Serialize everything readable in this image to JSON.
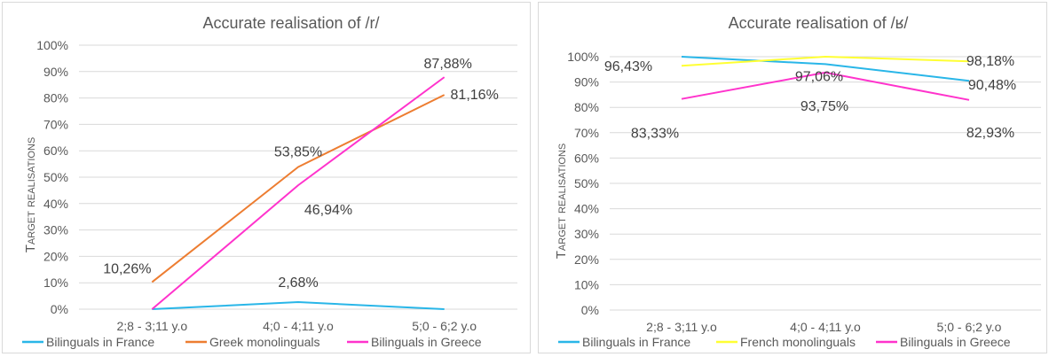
{
  "chart_data": [
    {
      "type": "line",
      "title": "Accurate realisation of /r/",
      "ylabel": "Target realisations",
      "xlabel": "",
      "ylim": [
        0,
        100
      ],
      "yticks": [
        "0%",
        "10%",
        "20%",
        "30%",
        "40%",
        "50%",
        "60%",
        "70%",
        "80%",
        "90%",
        "100%"
      ],
      "categories": [
        "2;8 - 3;11 y.o",
        "4;0 - 4;11 y.o",
        "5;0 - 6;2 y.o"
      ],
      "legend_position": "bottom",
      "series": [
        {
          "name": "Bilinguals in France",
          "color": "#29b6e8",
          "values": [
            0,
            2.68,
            0
          ],
          "labels": [
            "",
            "2,68%",
            ""
          ]
        },
        {
          "name": "Greek monolinguals",
          "color": "#ed7d31",
          "values": [
            10.26,
            53.85,
            81.16
          ],
          "labels": [
            "10,26%",
            "53,85%",
            "81,16%"
          ]
        },
        {
          "name": "Bilinguals in Greece",
          "color": "#ff33cc",
          "values": [
            0,
            46.94,
            87.88
          ],
          "labels": [
            "",
            "46,94%",
            "87,88%"
          ]
        }
      ]
    },
    {
      "type": "line",
      "title": "Accurate realisation of /ʁ/",
      "ylabel": "Target realisations",
      "xlabel": "",
      "ylim": [
        0,
        100
      ],
      "yticks": [
        "0%",
        "10%",
        "20%",
        "30%",
        "40%",
        "50%",
        "60%",
        "70%",
        "80%",
        "90%",
        "100%"
      ],
      "categories": [
        "2;8 - 3;11 y.o",
        "4;0 - 4;11 y.o",
        "5;0 - 6;2 y.o"
      ],
      "legend_position": "bottom",
      "series": [
        {
          "name": "Bilinguals in France",
          "color": "#29b6e8",
          "values": [
            100,
            97.06,
            90.48
          ],
          "labels": [
            "",
            "97,06%",
            "90,48%"
          ]
        },
        {
          "name": "French monolinguals",
          "color": "#ffff33",
          "values": [
            96.43,
            100,
            98.18
          ],
          "labels": [
            "96,43%",
            "",
            "98,18%"
          ]
        },
        {
          "name": "Bilinguals in Greece",
          "color": "#ff33cc",
          "values": [
            83.33,
            93.75,
            82.93
          ],
          "labels": [
            "83,33%",
            "93,75%",
            "82,93%"
          ]
        }
      ]
    }
  ]
}
